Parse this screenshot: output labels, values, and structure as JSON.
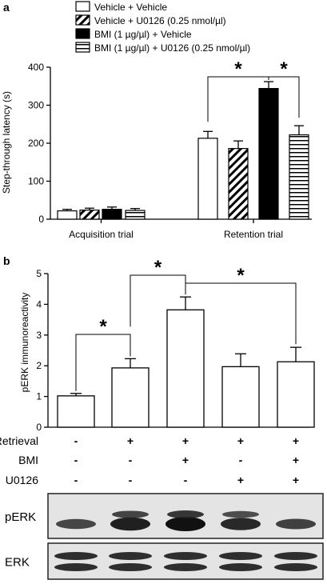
{
  "panel_a": {
    "label": "a",
    "legend": [
      {
        "name": "Vehicle + Vehicle",
        "pattern": "white"
      },
      {
        "name": "Vehicle + U0126 (0.25 nmol/µl)",
        "pattern": "diagonal"
      },
      {
        "name": "BMI (1 µg/µl) + Vehicle",
        "pattern": "black"
      },
      {
        "name": "BMI (1 µg/µl) + U0126 (0.25 nmol/µl)",
        "pattern": "horizontal"
      }
    ],
    "significance": [
      "*",
      "*"
    ]
  },
  "panel_b": {
    "label": "b",
    "significance": [
      "*",
      "*",
      "*"
    ],
    "treatment_rows": [
      {
        "label": "Retrieval",
        "values": [
          "-",
          "+",
          "+",
          "+",
          "+"
        ]
      },
      {
        "label": "BMI",
        "values": [
          "-",
          "-",
          "+",
          "-",
          "+"
        ]
      },
      {
        "label": "U0126",
        "values": [
          "-",
          "-",
          "-",
          "+",
          "+"
        ]
      }
    ],
    "blots": [
      {
        "label": "pERK",
        "intensity": [
          0.45,
          0.85,
          1.0,
          0.75,
          0.5
        ]
      },
      {
        "label": "ERK",
        "intensity": [
          0.8,
          0.8,
          0.8,
          0.8,
          0.8
        ]
      }
    ]
  },
  "chart_data": [
    {
      "type": "bar",
      "title": "",
      "xlabel": "",
      "ylabel": "Step-through latency (s)",
      "ylim": [
        0,
        400
      ],
      "yticks": [
        0,
        100,
        200,
        300,
        400
      ],
      "categories": [
        "Acquisition trial",
        "Retention trial"
      ],
      "series": [
        {
          "name": "Vehicle + Vehicle",
          "values": [
            22,
            213
          ],
          "errors": [
            4,
            18
          ]
        },
        {
          "name": "Vehicle + U0126 (0.25 nmol/µl)",
          "values": [
            24,
            186
          ],
          "errors": [
            5,
            20
          ]
        },
        {
          "name": "BMI (1 µg/µl) + Vehicle",
          "values": [
            26,
            344
          ],
          "errors": [
            6,
            18
          ]
        },
        {
          "name": "BMI (1 µg/µl) + U0126 (0.25 nmol/µl)",
          "values": [
            23,
            222
          ],
          "errors": [
            5,
            24
          ]
        }
      ],
      "legend_position": "top",
      "grid": false
    },
    {
      "type": "bar",
      "title": "",
      "xlabel": "",
      "ylabel": "pERK immunoreactivity",
      "ylim": [
        0,
        5
      ],
      "yticks": [
        0,
        1,
        2,
        3,
        4,
        5
      ],
      "values": [
        1.02,
        1.93,
        3.82,
        1.97,
        2.13
      ],
      "errors": [
        0.08,
        0.3,
        0.42,
        0.42,
        0.47
      ],
      "grid": false
    }
  ]
}
